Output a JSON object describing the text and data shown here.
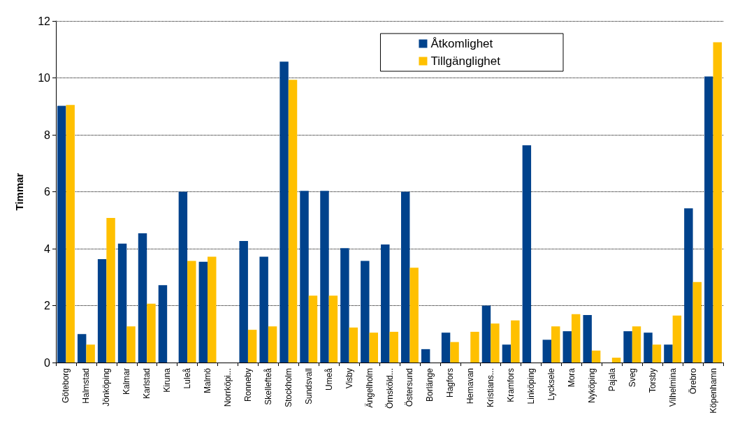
{
  "chart_data": {
    "type": "bar",
    "ylabel": "Timmar",
    "categories": [
      "Göteborg",
      "Halmstad",
      "Jönköping",
      "Kalmar",
      "Karlstad",
      "Kiruna",
      "Luleå",
      "Malmö",
      "Norrköpi...",
      "Ronneby",
      "Skellefteå",
      "Stockholm",
      "Sundsvall",
      "Umeå",
      "Visby",
      "Ängelholm",
      "Örnsköld...",
      "Östersund",
      "Borlänge",
      "Hagfors",
      "Hemavan",
      "Kristians...",
      "Kramfors",
      "Linköping",
      "Lycksele",
      "Mora",
      "Nyköping",
      "Pajala",
      "Sveg",
      "Torsby",
      "Vilhelmina",
      "Örebro",
      "Köpenhamn"
    ],
    "series": [
      {
        "name": "Åtkomlighet",
        "color": "#00428c",
        "values": [
          9.02,
          1.0,
          3.63,
          4.18,
          4.54,
          2.72,
          6.0,
          3.54,
          null,
          4.27,
          3.72,
          10.57,
          6.03,
          6.03,
          4.02,
          3.57,
          4.15,
          6.0,
          0.47,
          1.05,
          null,
          2.0,
          0.63,
          7.63,
          0.8,
          1.1,
          1.67,
          null,
          1.1,
          1.05,
          0.63,
          5.42,
          10.05
        ]
      },
      {
        "name": "Tillgänglighet",
        "color": "#ffc000",
        "values": [
          9.05,
          0.63,
          5.08,
          1.27,
          2.07,
          null,
          3.57,
          3.72,
          null,
          1.15,
          1.27,
          9.93,
          2.35,
          2.35,
          1.23,
          1.05,
          1.08,
          3.33,
          null,
          0.72,
          1.08,
          1.37,
          1.48,
          null,
          1.27,
          1.7,
          0.42,
          0.17,
          1.27,
          0.63,
          1.65,
          2.83,
          11.25
        ]
      }
    ],
    "ylim": [
      0,
      12
    ],
    "yticks": [
      0,
      2,
      4,
      6,
      8,
      10,
      12
    ],
    "grid": "y",
    "legend": "top right"
  }
}
